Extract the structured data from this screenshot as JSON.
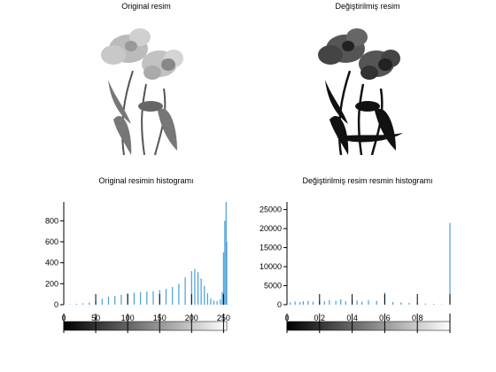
{
  "titles": {
    "original_image": "Original resim",
    "modified_image": "Değiştirilmiş resim",
    "original_hist": "Original resimin histogramı",
    "modified_hist": "Değiştirilmiş resim resmin histogramı"
  },
  "colors": {
    "bar": "#4a9fd8",
    "axis": "#000000"
  },
  "chart_data": [
    {
      "type": "bar",
      "title": "Original resimin histogramı",
      "xlabel": "",
      "ylabel": "",
      "xlim": [
        0,
        255
      ],
      "ylim": [
        0,
        980
      ],
      "x_ticks": [
        0,
        50,
        100,
        150,
        200,
        250
      ],
      "x_tick_labels": [
        "0",
        "50",
        "100",
        "150",
        "200",
        "250"
      ],
      "y_ticks": [
        0,
        200,
        400,
        600,
        800
      ],
      "y_tick_labels": [
        "0",
        "200",
        "400",
        "600",
        "800"
      ],
      "series": [
        {
          "bins": [
            0,
            10,
            20,
            30,
            40,
            50,
            60,
            70,
            80,
            90,
            100,
            110,
            120,
            130,
            140,
            150,
            160,
            170,
            180,
            190,
            200,
            205,
            210,
            215,
            220,
            225,
            230,
            235,
            240,
            245,
            248,
            250,
            252,
            254,
            255
          ],
          "values": [
            2,
            4,
            8,
            12,
            20,
            35,
            55,
            75,
            85,
            95,
            110,
            115,
            120,
            125,
            130,
            140,
            150,
            170,
            200,
            260,
            320,
            340,
            310,
            250,
            180,
            110,
            60,
            40,
            35,
            50,
            120,
            500,
            800,
            980,
            600
          ]
        }
      ],
      "colorbar": {
        "range": [
          0,
          255
        ],
        "ticks": [
          0,
          50,
          100,
          150,
          200,
          250
        ]
      }
    },
    {
      "type": "bar",
      "title": "Değiştirilmiş resim resmin histogramı",
      "xlabel": "",
      "ylabel": "",
      "xlim": [
        0,
        1
      ],
      "ylim": [
        0,
        27000
      ],
      "x_ticks": [
        0,
        0.2,
        0.4,
        0.6,
        0.8,
        1.0
      ],
      "x_tick_labels": [
        "0",
        "0.2",
        "0.4",
        "0.6",
        "0.8",
        ""
      ],
      "y_ticks": [
        0,
        5000,
        10000,
        15000,
        20000,
        25000
      ],
      "y_tick_labels": [
        "0",
        "5000",
        "10000",
        "15000",
        "20000",
        "25000"
      ],
      "series": [
        {
          "bins": [
            0.0,
            0.02,
            0.05,
            0.08,
            0.1,
            0.13,
            0.16,
            0.2,
            0.23,
            0.26,
            0.3,
            0.33,
            0.36,
            0.4,
            0.43,
            0.46,
            0.5,
            0.55,
            0.6,
            0.65,
            0.7,
            0.75,
            0.8,
            0.85,
            0.9,
            0.95,
            1.0
          ],
          "values": [
            300,
            600,
            800,
            700,
            900,
            1000,
            800,
            1100,
            900,
            1200,
            1000,
            1400,
            900,
            1300,
            1100,
            800,
            1200,
            1000,
            3200,
            700,
            600,
            500,
            400,
            300,
            200,
            100,
            21500
          ]
        }
      ],
      "colorbar": {
        "range": [
          0,
          1
        ],
        "ticks": [
          0,
          0.2,
          0.4,
          0.6,
          0.8,
          1.0
        ]
      }
    }
  ]
}
